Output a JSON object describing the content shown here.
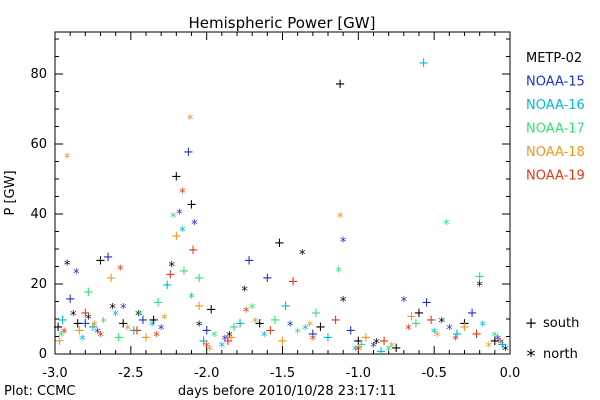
{
  "chart_data": {
    "type": "scatter",
    "title": "Hemispheric Power [GW]",
    "xlabel": "days before 2010/10/28 23:17:11",
    "ylabel": "P [GW]",
    "xlim": [
      -3.0,
      0.0
    ],
    "ylim": [
      0,
      92
    ],
    "xticks": [
      "-3.0",
      "-2.5",
      "-2.0",
      "-1.5",
      "-1.0",
      "-0.5",
      "0.0"
    ],
    "yticks": [
      "0",
      "20",
      "40",
      "60",
      "80"
    ],
    "grid": false,
    "legend_position": "right",
    "hemisphere_markers": [
      {
        "symbol": "+",
        "label": "south"
      },
      {
        "symbol": "*",
        "label": "north"
      }
    ],
    "series": [
      {
        "name": "METP-02",
        "color": "#000000",
        "points": [
          {
            "x": -2.98,
            "y": 8,
            "h": "s"
          },
          {
            "x": -2.92,
            "y": 26.5,
            "h": "n"
          },
          {
            "x": -2.88,
            "y": 12,
            "h": "n"
          },
          {
            "x": -2.85,
            "y": 9,
            "h": "s"
          },
          {
            "x": -2.78,
            "y": 11,
            "h": "n"
          },
          {
            "x": -2.7,
            "y": 27,
            "h": "s"
          },
          {
            "x": -2.62,
            "y": 14,
            "h": "n"
          },
          {
            "x": -2.55,
            "y": 9,
            "h": "s"
          },
          {
            "x": -2.45,
            "y": 12,
            "h": "n"
          },
          {
            "x": -2.35,
            "y": 10,
            "h": "s"
          },
          {
            "x": -2.23,
            "y": 26,
            "h": "n"
          },
          {
            "x": -2.2,
            "y": 51,
            "h": "s"
          },
          {
            "x": -2.1,
            "y": 43,
            "h": "s"
          },
          {
            "x": -2.05,
            "y": 9,
            "h": "n"
          },
          {
            "x": -1.97,
            "y": 13,
            "h": "s"
          },
          {
            "x": -1.85,
            "y": 6,
            "h": "n"
          },
          {
            "x": -1.75,
            "y": 19,
            "h": "n"
          },
          {
            "x": -1.65,
            "y": 9,
            "h": "s"
          },
          {
            "x": -1.52,
            "y": 32,
            "h": "s"
          },
          {
            "x": -1.37,
            "y": 29.5,
            "h": "n"
          },
          {
            "x": -1.25,
            "y": 8,
            "h": "s"
          },
          {
            "x": -1.12,
            "y": 77.5,
            "h": "s"
          },
          {
            "x": -1.1,
            "y": 16,
            "h": "n"
          },
          {
            "x": -1.0,
            "y": 4,
            "h": "s"
          },
          {
            "x": -0.88,
            "y": 4,
            "h": "n"
          },
          {
            "x": -0.75,
            "y": 2,
            "h": "s"
          },
          {
            "x": -0.6,
            "y": 12,
            "h": "s"
          },
          {
            "x": -0.45,
            "y": 10,
            "h": "n"
          },
          {
            "x": -0.3,
            "y": 9,
            "h": "s"
          },
          {
            "x": -0.2,
            "y": 20.5,
            "h": "n"
          },
          {
            "x": -0.1,
            "y": 4,
            "h": "s"
          },
          {
            "x": -0.03,
            "y": 2,
            "h": "n"
          }
        ]
      },
      {
        "name": "NOAA-15",
        "color": "#1f2fd0",
        "points": [
          {
            "x": -2.9,
            "y": 16,
            "h": "s"
          },
          {
            "x": -2.86,
            "y": 24,
            "h": "n"
          },
          {
            "x": -2.8,
            "y": 9,
            "h": "s"
          },
          {
            "x": -2.72,
            "y": 7,
            "h": "n"
          },
          {
            "x": -2.65,
            "y": 28,
            "h": "s"
          },
          {
            "x": -2.55,
            "y": 14,
            "h": "n"
          },
          {
            "x": -2.42,
            "y": 10,
            "h": "s"
          },
          {
            "x": -2.3,
            "y": 8,
            "h": "n"
          },
          {
            "x": -2.18,
            "y": 41,
            "h": "n"
          },
          {
            "x": -2.12,
            "y": 58,
            "h": "s"
          },
          {
            "x": -2.08,
            "y": 38,
            "h": "n"
          },
          {
            "x": -2.0,
            "y": 7,
            "h": "s"
          },
          {
            "x": -1.88,
            "y": 5,
            "h": "n"
          },
          {
            "x": -1.72,
            "y": 27,
            "h": "s"
          },
          {
            "x": -1.6,
            "y": 22,
            "h": "s"
          },
          {
            "x": -1.45,
            "y": 9,
            "h": "n"
          },
          {
            "x": -1.3,
            "y": 6,
            "h": "s"
          },
          {
            "x": -1.1,
            "y": 33,
            "h": "n"
          },
          {
            "x": -1.05,
            "y": 7,
            "h": "s"
          },
          {
            "x": -0.9,
            "y": 3,
            "h": "n"
          },
          {
            "x": -0.7,
            "y": 16,
            "h": "n"
          },
          {
            "x": -0.55,
            "y": 15,
            "h": "s"
          },
          {
            "x": -0.4,
            "y": 8,
            "h": "n"
          },
          {
            "x": -0.25,
            "y": 12,
            "h": "s"
          },
          {
            "x": -0.08,
            "y": 5,
            "h": "n"
          }
        ]
      },
      {
        "name": "NOAA-16",
        "color": "#00b8d8",
        "points": [
          {
            "x": -2.95,
            "y": 10,
            "h": "s"
          },
          {
            "x": -2.82,
            "y": 5,
            "h": "n"
          },
          {
            "x": -2.75,
            "y": 8,
            "h": "s"
          },
          {
            "x": -2.6,
            "y": 12,
            "h": "n"
          },
          {
            "x": -2.48,
            "y": 7,
            "h": "s"
          },
          {
            "x": -2.36,
            "y": 9,
            "h": "n"
          },
          {
            "x": -2.26,
            "y": 20,
            "h": "s"
          },
          {
            "x": -2.16,
            "y": 36,
            "h": "n"
          },
          {
            "x": -2.1,
            "y": 17,
            "h": "n"
          },
          {
            "x": -2.02,
            "y": 4,
            "h": "s"
          },
          {
            "x": -1.9,
            "y": 3,
            "h": "n"
          },
          {
            "x": -1.78,
            "y": 9,
            "h": "s"
          },
          {
            "x": -1.62,
            "y": 6,
            "h": "n"
          },
          {
            "x": -1.48,
            "y": 14,
            "h": "s"
          },
          {
            "x": -1.35,
            "y": 8,
            "h": "n"
          },
          {
            "x": -1.2,
            "y": 5,
            "h": "s"
          },
          {
            "x": -1.02,
            "y": 2,
            "h": "n"
          },
          {
            "x": -0.85,
            "y": 1,
            "h": "s"
          },
          {
            "x": -0.57,
            "y": 83.5,
            "h": "s"
          },
          {
            "x": -0.5,
            "y": 7,
            "h": "n"
          },
          {
            "x": -0.35,
            "y": 6,
            "h": "s"
          },
          {
            "x": -0.18,
            "y": 9,
            "h": "n"
          },
          {
            "x": -0.05,
            "y": 3,
            "h": "s"
          }
        ]
      },
      {
        "name": "NOAA-17",
        "color": "#33e07a",
        "points": [
          {
            "x": -2.96,
            "y": 6,
            "h": "n"
          },
          {
            "x": -2.78,
            "y": 18,
            "h": "s"
          },
          {
            "x": -2.68,
            "y": 10,
            "h": "n"
          },
          {
            "x": -2.58,
            "y": 5,
            "h": "s"
          },
          {
            "x": -2.44,
            "y": 12,
            "h": "n"
          },
          {
            "x": -2.32,
            "y": 15,
            "h": "s"
          },
          {
            "x": -2.22,
            "y": 40,
            "h": "n"
          },
          {
            "x": -2.15,
            "y": 24,
            "h": "s"
          },
          {
            "x": -2.05,
            "y": 22,
            "h": "s"
          },
          {
            "x": -1.95,
            "y": 6,
            "h": "n"
          },
          {
            "x": -1.82,
            "y": 8,
            "h": "s"
          },
          {
            "x": -1.7,
            "y": 14,
            "h": "n"
          },
          {
            "x": -1.55,
            "y": 10,
            "h": "s"
          },
          {
            "x": -1.4,
            "y": 7,
            "h": "n"
          },
          {
            "x": -1.28,
            "y": 12,
            "h": "s"
          },
          {
            "x": -1.13,
            "y": 24.5,
            "h": "n"
          },
          {
            "x": -0.98,
            "y": 3,
            "h": "s"
          },
          {
            "x": -0.8,
            "y": 2,
            "h": "n"
          },
          {
            "x": -0.62,
            "y": 9,
            "h": "s"
          },
          {
            "x": -0.42,
            "y": 38,
            "h": "n"
          },
          {
            "x": -0.2,
            "y": 22.5,
            "h": "s"
          },
          {
            "x": -0.1,
            "y": 6,
            "h": "n"
          }
        ]
      },
      {
        "name": "NOAA-18",
        "color": "#f0961e",
        "points": [
          {
            "x": -2.97,
            "y": 4,
            "h": "s"
          },
          {
            "x": -2.92,
            "y": 57,
            "h": "n"
          },
          {
            "x": -2.84,
            "y": 7,
            "h": "s"
          },
          {
            "x": -2.74,
            "y": 9,
            "h": "n"
          },
          {
            "x": -2.63,
            "y": 22,
            "h": "s"
          },
          {
            "x": -2.52,
            "y": 8,
            "h": "n"
          },
          {
            "x": -2.4,
            "y": 5,
            "h": "s"
          },
          {
            "x": -2.28,
            "y": 11,
            "h": "n"
          },
          {
            "x": -2.2,
            "y": 34,
            "h": "s"
          },
          {
            "x": -2.11,
            "y": 68,
            "h": "n"
          },
          {
            "x": -2.05,
            "y": 14,
            "h": "s"
          },
          {
            "x": -1.98,
            "y": 2,
            "h": "n"
          },
          {
            "x": -1.84,
            "y": 5,
            "h": "s"
          },
          {
            "x": -1.68,
            "y": 10,
            "h": "n"
          },
          {
            "x": -1.5,
            "y": 4,
            "h": "s"
          },
          {
            "x": -1.32,
            "y": 9,
            "h": "n"
          },
          {
            "x": -1.12,
            "y": 40,
            "h": "n"
          },
          {
            "x": -0.95,
            "y": 5,
            "h": "s"
          },
          {
            "x": -0.78,
            "y": 3,
            "h": "n"
          },
          {
            "x": -0.65,
            "y": 11,
            "h": "s"
          },
          {
            "x": -0.48,
            "y": 6,
            "h": "n"
          },
          {
            "x": -0.3,
            "y": 8,
            "h": "s"
          },
          {
            "x": -0.14,
            "y": 3,
            "h": "n"
          }
        ]
      },
      {
        "name": "NOAA-19",
        "color": "#e03a14",
        "points": [
          {
            "x": -2.94,
            "y": 7,
            "h": "n"
          },
          {
            "x": -2.8,
            "y": 12,
            "h": "s"
          },
          {
            "x": -2.7,
            "y": 6,
            "h": "n"
          },
          {
            "x": -2.57,
            "y": 25,
            "h": "n"
          },
          {
            "x": -2.46,
            "y": 7,
            "h": "s"
          },
          {
            "x": -2.33,
            "y": 6,
            "h": "n"
          },
          {
            "x": -2.24,
            "y": 23,
            "h": "s"
          },
          {
            "x": -2.16,
            "y": 47,
            "h": "n"
          },
          {
            "x": -2.09,
            "y": 30,
            "h": "s"
          },
          {
            "x": -2.0,
            "y": 3,
            "h": "n"
          },
          {
            "x": -1.86,
            "y": 4,
            "h": "s"
          },
          {
            "x": -1.74,
            "y": 13,
            "h": "n"
          },
          {
            "x": -1.58,
            "y": 7,
            "h": "s"
          },
          {
            "x": -1.43,
            "y": 21,
            "h": "s"
          },
          {
            "x": -1.3,
            "y": 5,
            "h": "n"
          },
          {
            "x": -1.15,
            "y": 10,
            "h": "s"
          },
          {
            "x": -1.0,
            "y": 2,
            "h": "n"
          },
          {
            "x": -0.83,
            "y": 4,
            "h": "s"
          },
          {
            "x": -0.67,
            "y": 8,
            "h": "n"
          },
          {
            "x": -0.52,
            "y": 10,
            "h": "s"
          },
          {
            "x": -0.36,
            "y": 5,
            "h": "n"
          },
          {
            "x": -0.22,
            "y": 6,
            "h": "s"
          },
          {
            "x": -0.06,
            "y": 4,
            "h": "n"
          }
        ]
      }
    ]
  },
  "footer": {
    "credit": "Plot: CCMC"
  }
}
